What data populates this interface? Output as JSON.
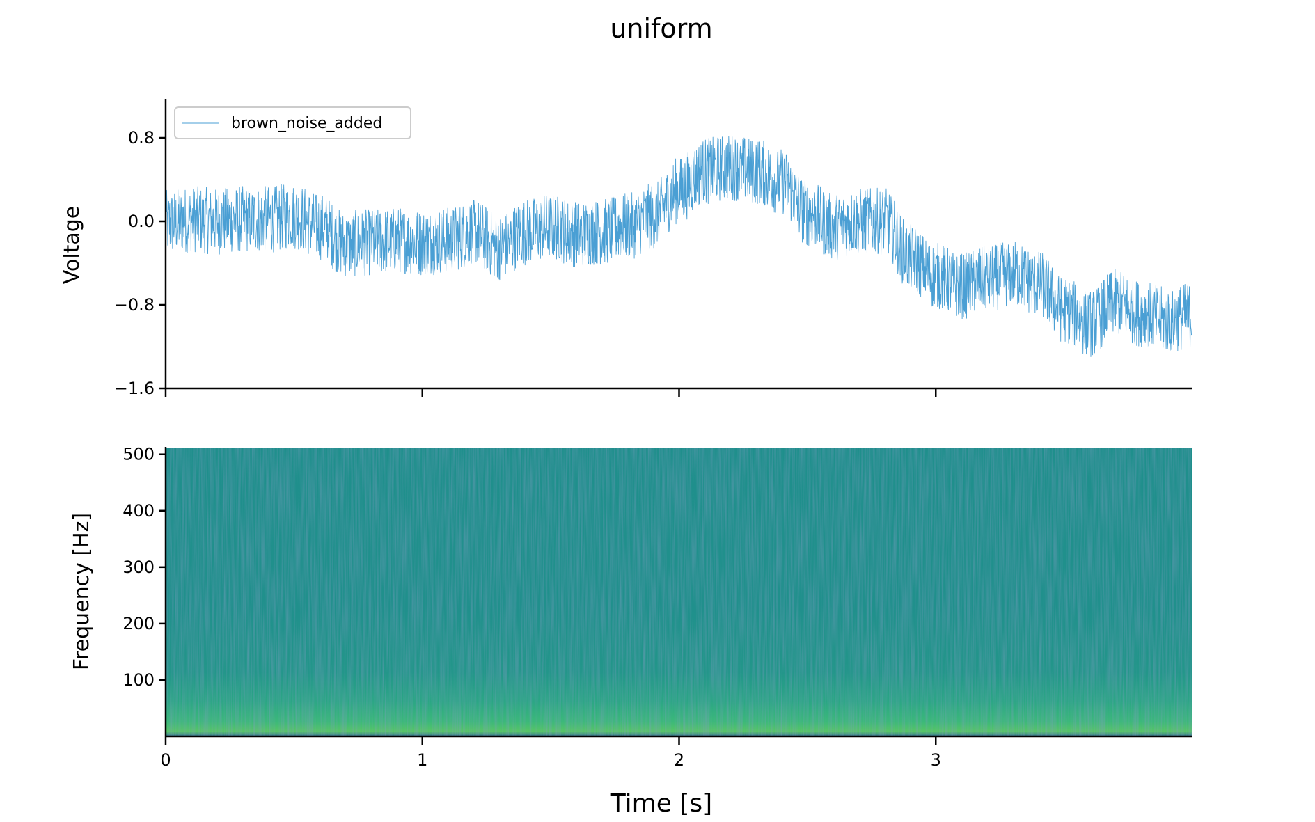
{
  "chart_data": [
    {
      "type": "line",
      "title": "uniform",
      "ylabel": "Voltage",
      "xlabel": "",
      "xlim": [
        0,
        4
      ],
      "ylim": [
        -1.6,
        1.15
      ],
      "y_ticks": [
        0.8,
        0.0,
        -0.8,
        -1.6
      ],
      "y_tick_labels": [
        "0.8",
        "0.0",
        "−0.8",
        "−1.6"
      ],
      "x_ticks": [
        0,
        1,
        2,
        3
      ],
      "legend": {
        "placement": "top-left",
        "entries": [
          "brown_noise_added"
        ]
      },
      "series": [
        {
          "name": "brown_noise_added",
          "color": "#4a9fd4",
          "trend": {
            "x": [
              0,
              0.1,
              0.2,
              0.3,
              0.4,
              0.5,
              0.6,
              0.7,
              0.8,
              0.9,
              1.0,
              1.1,
              1.2,
              1.3,
              1.4,
              1.5,
              1.6,
              1.7,
              1.8,
              1.9,
              2.0,
              2.1,
              2.2,
              2.3,
              2.4,
              2.5,
              2.6,
              2.7,
              2.8,
              2.9,
              3.0,
              3.1,
              3.2,
              3.3,
              3.4,
              3.5,
              3.6,
              3.7,
              3.8,
              3.9,
              4.0
            ],
            "y": [
              -0.02,
              0.02,
              0.0,
              0.02,
              0.02,
              0.05,
              -0.05,
              -0.22,
              -0.2,
              -0.18,
              -0.2,
              -0.18,
              -0.1,
              -0.25,
              -0.1,
              -0.05,
              -0.12,
              -0.1,
              -0.05,
              0.05,
              0.3,
              0.48,
              0.52,
              0.48,
              0.38,
              0.08,
              -0.05,
              0.0,
              0.0,
              -0.35,
              -0.52,
              -0.62,
              -0.55,
              -0.5,
              -0.6,
              -0.85,
              -0.98,
              -0.78,
              -0.88,
              -0.95,
              -0.9
            ]
          },
          "noise_amplitude": 0.32
        }
      ]
    },
    {
      "type": "heatmap",
      "ylabel": "Frequency [Hz]",
      "xlabel": "Time [s]",
      "xlim": [
        0,
        4
      ],
      "ylim": [
        0,
        512
      ],
      "y_ticks": [
        100,
        200,
        300,
        400,
        500
      ],
      "x_ticks": [
        0,
        1,
        2,
        3
      ],
      "x_tick_labels": [
        "0",
        "1",
        "2",
        "3"
      ],
      "colormap": "viridis",
      "colors": {
        "low": "#3a528b",
        "mid": "#21918c",
        "high": "#5ec962"
      }
    }
  ]
}
